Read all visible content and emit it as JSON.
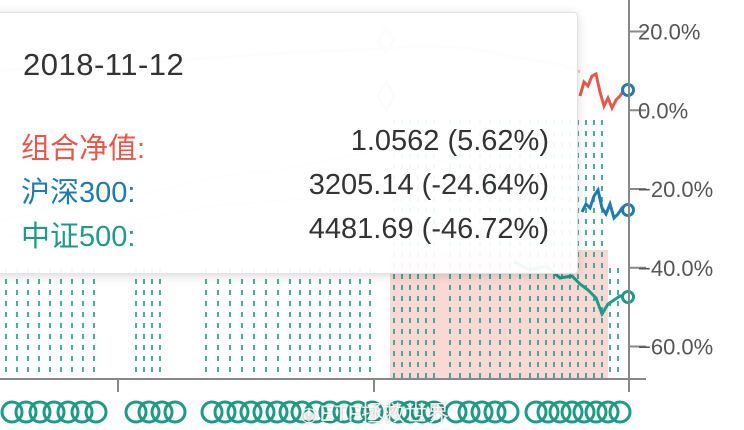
{
  "chart_data": {
    "type": "line",
    "y_axis": {
      "position": "right",
      "ticks": [
        "20.0%",
        "0.0%",
        "−20.0%",
        "−40.0%",
        "−60.0%"
      ],
      "tick_values": [
        20,
        0,
        -20,
        -40,
        -60
      ],
      "range": [
        -68,
        28
      ]
    },
    "series": [
      {
        "name": "组合净值",
        "color": "#e8574a",
        "end_value": 5.62
      },
      {
        "name": "沪深300",
        "color": "#1f7bb0",
        "end_value": -24.64
      },
      {
        "name": "中证500",
        "color": "#1e9a86",
        "end_value": -46.72
      }
    ],
    "grid": false
  },
  "tooltip": {
    "date": "2018-11-12",
    "rows": [
      {
        "label": "组合净值:",
        "value": "1.0562 (5.62%)",
        "color": "#e8574a"
      },
      {
        "label": "沪深300:",
        "value": "3205.14 (-24.64%)",
        "color": "#1f7bb0"
      },
      {
        "label": "中证500:",
        "value": "4481.69 (-46.72%)",
        "color": "#1e9a86"
      }
    ]
  },
  "watermark": {
    "icon": "weibo-icon",
    "text": "ETF拯救世界"
  },
  "colors": {
    "highlight_band": "#f9d2cd",
    "marker": "#1e9a86",
    "axis": "#888888"
  }
}
